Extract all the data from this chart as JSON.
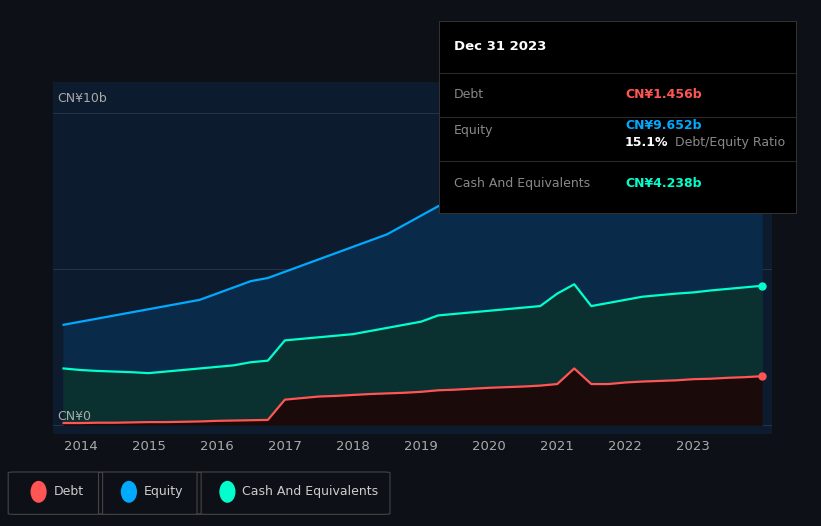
{
  "background_color": "#0d1117",
  "plot_bg_color": "#0d1b2e",
  "x_years": [
    2013.75,
    2014.0,
    2014.25,
    2014.5,
    2014.75,
    2015.0,
    2015.25,
    2015.5,
    2015.75,
    2016.0,
    2016.25,
    2016.5,
    2016.75,
    2017.0,
    2017.25,
    2017.5,
    2017.75,
    2018.0,
    2018.25,
    2018.5,
    2018.75,
    2019.0,
    2019.25,
    2019.5,
    2019.75,
    2020.0,
    2020.25,
    2020.5,
    2020.75,
    2021.0,
    2021.25,
    2021.5,
    2021.75,
    2022.0,
    2022.25,
    2022.5,
    2022.75,
    2023.0,
    2023.25,
    2023.5,
    2023.75,
    2024.0
  ],
  "equity": [
    3.2,
    3.3,
    3.4,
    3.5,
    3.6,
    3.7,
    3.8,
    3.9,
    4.0,
    4.2,
    4.4,
    4.6,
    4.7,
    4.9,
    5.1,
    5.3,
    5.5,
    5.7,
    5.9,
    6.1,
    6.4,
    6.7,
    7.0,
    7.2,
    7.4,
    7.6,
    7.8,
    8.0,
    8.2,
    8.5,
    8.7,
    8.9,
    9.0,
    9.1,
    9.2,
    9.4,
    9.5,
    9.652,
    9.7,
    9.8,
    9.9,
    10.1
  ],
  "cash": [
    1.8,
    1.75,
    1.72,
    1.7,
    1.68,
    1.65,
    1.7,
    1.75,
    1.8,
    1.85,
    1.9,
    2.0,
    2.05,
    2.7,
    2.75,
    2.8,
    2.85,
    2.9,
    3.0,
    3.1,
    3.2,
    3.3,
    3.5,
    3.55,
    3.6,
    3.65,
    3.7,
    3.75,
    3.8,
    4.2,
    4.5,
    3.8,
    3.9,
    4.0,
    4.1,
    4.15,
    4.2,
    4.238,
    4.3,
    4.35,
    4.4,
    4.45
  ],
  "debt": [
    0.05,
    0.05,
    0.06,
    0.06,
    0.07,
    0.08,
    0.08,
    0.09,
    0.1,
    0.12,
    0.13,
    0.14,
    0.15,
    0.8,
    0.85,
    0.9,
    0.92,
    0.95,
    0.98,
    1.0,
    1.02,
    1.05,
    1.1,
    1.12,
    1.15,
    1.18,
    1.2,
    1.22,
    1.25,
    1.3,
    1.8,
    1.3,
    1.3,
    1.35,
    1.38,
    1.4,
    1.42,
    1.456,
    1.47,
    1.5,
    1.52,
    1.55
  ],
  "equity_color": "#00aaff",
  "cash_color": "#00ffcc",
  "debt_color": "#ff5555",
  "equity_fill": "#0a2a4a",
  "cash_fill": "#0a3030",
  "debt_fill": "#1a0a0a",
  "xlim": [
    2013.6,
    2024.15
  ],
  "ylim": [
    -0.3,
    11.0
  ],
  "xtick_labels": [
    "2014",
    "2015",
    "2016",
    "2017",
    "2018",
    "2019",
    "2020",
    "2021",
    "2022",
    "2023"
  ],
  "xtick_values": [
    2014,
    2015,
    2016,
    2017,
    2018,
    2019,
    2020,
    2021,
    2022,
    2023
  ],
  "ylabel_10b": "CN¥10b",
  "ylabel_0": "CN¥0",
  "tooltip_title": "Dec 31 2023",
  "tooltip_debt_label": "Debt",
  "tooltip_debt_value": "CN¥1.456b",
  "tooltip_equity_label": "Equity",
  "tooltip_equity_value": "CN¥9.652b",
  "tooltip_ratio": "15.1%",
  "tooltip_ratio_text": "Debt/Equity Ratio",
  "tooltip_cash_label": "Cash And Equivalents",
  "tooltip_cash_value": "CN¥4.238b",
  "legend_debt": "Debt",
  "legend_equity": "Equity",
  "legend_cash": "Cash And Equivalents"
}
